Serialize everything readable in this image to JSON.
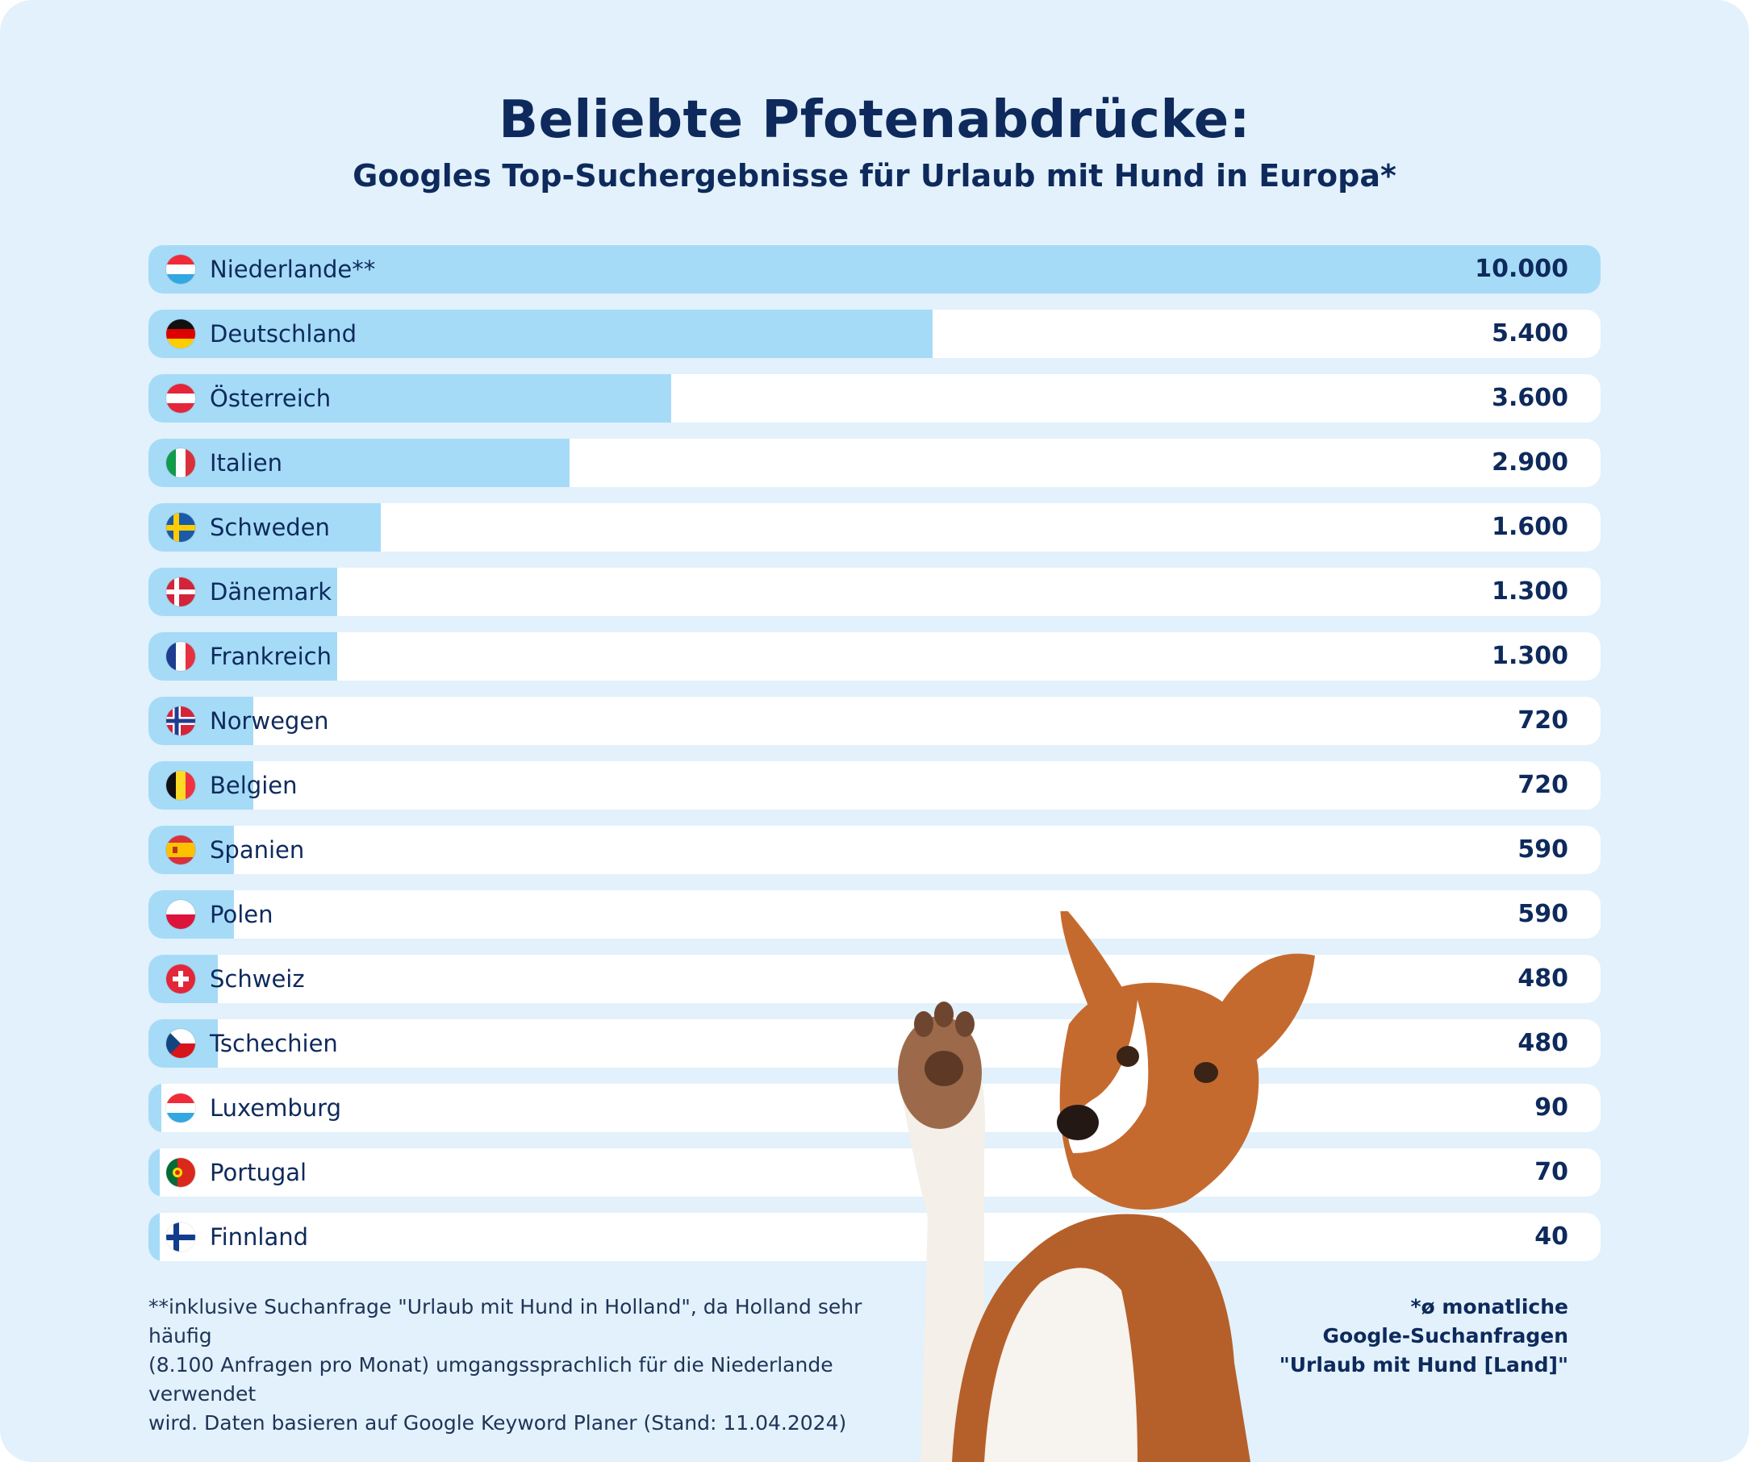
{
  "title": "Beliebte Pfotenabdrücke:",
  "subtitle": "Googles Top-Suchergebnisse für Urlaub mit Hund in Europa*",
  "colors": {
    "background": "#e2f1fb",
    "bar": "#a6dbf7",
    "track": "#ffffff",
    "text": "#0e2a5c"
  },
  "chart_data": {
    "type": "bar",
    "orientation": "horizontal",
    "title": "Beliebte Pfotenabdrücke:",
    "subtitle": "Googles Top-Suchergebnisse für Urlaub mit Hund in Europa*",
    "categories": [
      "Niederlande**",
      "Deutschland",
      "Österreich",
      "Italien",
      "Schweden",
      "Dänemark",
      "Frankreich",
      "Norwegen",
      "Belgien",
      "Spanien",
      "Polen",
      "Schweiz",
      "Tschechien",
      "Luxemburg",
      "Portugal",
      "Finnland"
    ],
    "values": [
      10000,
      5400,
      3600,
      2900,
      1600,
      1300,
      1300,
      720,
      720,
      590,
      590,
      480,
      480,
      90,
      70,
      40
    ],
    "value_labels": [
      "10.000",
      "5.400",
      "3.600",
      "2.900",
      "1.600",
      "1.300",
      "1.300",
      "720",
      "720",
      "590",
      "590",
      "480",
      "480",
      "90",
      "70",
      "40"
    ],
    "flag_icons": [
      "flag-niederlande-icon",
      "flag-deutschland-icon",
      "flag-oesterreich-icon",
      "flag-italien-icon",
      "flag-schweden-icon",
      "flag-daenemark-icon",
      "flag-frankreich-icon",
      "flag-norwegen-icon",
      "flag-belgien-icon",
      "flag-spanien-icon",
      "flag-polen-icon",
      "flag-schweiz-icon",
      "flag-tschechien-icon",
      "flag-luxemburg-icon",
      "flag-portugal-icon",
      "flag-finnland-icon"
    ],
    "xlim": [
      0,
      10000
    ],
    "grid": false,
    "legend": "none"
  },
  "footnote_lines": [
    "**inklusive Suchanfrage \"Urlaub mit Hund in Holland\", da Holland sehr häufig",
    "(8.100 Anfragen pro Monat) umgangssprachlich für die Niederlande verwendet",
    "wird. Daten basieren auf Google Keyword Planer (Stand: 11.04.2024)"
  ],
  "note_lines": [
    "*ø monatliche",
    "Google-Suchanfragen",
    "\"Urlaub mit Hund [Land]\""
  ],
  "image": "dog-raising-paw-photo"
}
